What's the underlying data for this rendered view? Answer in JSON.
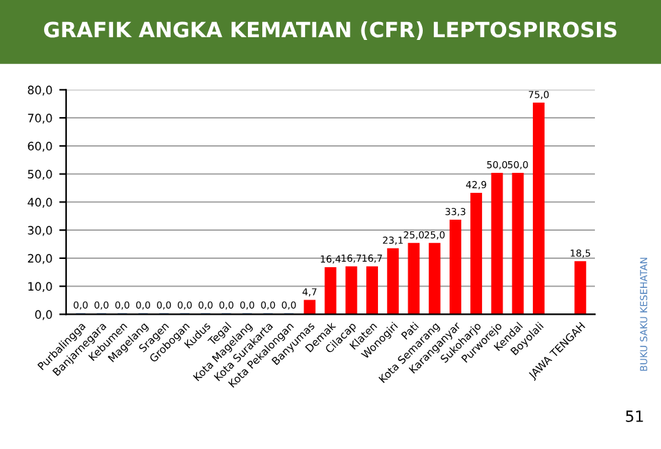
{
  "chart_data": {
    "type": "bar",
    "title": "GRAFIK ANGKA KEMATIAN (CFR) LEPTOSPIROSIS",
    "categories": [
      "Purbalingga",
      "Banjarnegara",
      "Kebumen",
      "Magelang",
      "Sragen",
      "Grobogan",
      "Kudus",
      "Tegal",
      "Kota Magelang",
      "Kota Surakarta",
      "Kota Pekalongan",
      "Banyumas",
      "Demak",
      "Cilacap",
      "Klaten",
      "Wonogiri",
      "Pati",
      "Kota Semarang",
      "Karanganyar",
      "Sukoharjo",
      "Purworejo",
      "Kendal",
      "Boyolali",
      null,
      "JAWA TENGAH"
    ],
    "values": [
      0,
      0,
      0,
      0,
      0,
      0,
      0,
      0,
      0,
      0,
      0,
      4.7,
      16.4,
      16.7,
      16.7,
      23.1,
      25.0,
      25.0,
      33.3,
      42.9,
      50.0,
      50.0,
      75.0,
      null,
      18.5
    ],
    "colors": [
      "#4f81bd",
      "#4f81bd",
      "#4f81bd",
      "#4f81bd",
      "#4f81bd",
      "#4f81bd",
      "#4f81bd",
      "#4f81bd",
      "#4f81bd",
      "#4f81bd",
      "#4f81bd",
      "#ff0000",
      "#ff0000",
      "#ff0000",
      "#ff0000",
      "#ff0000",
      "#ff0000",
      "#ff0000",
      "#ff0000",
      "#ff0000",
      "#ff0000",
      "#ff0000",
      "#ff0000",
      "#ff0000",
      "#ff0000"
    ],
    "value_labels": [
      "0,0",
      "0,0",
      "0,0",
      "0,0",
      "0,0",
      "0,0",
      "0,0",
      "0,0",
      "0,0",
      "0,0",
      "0,0",
      "4,7",
      "16,4",
      "16,7",
      "16,7",
      "23,1",
      "25,0",
      "25,0",
      "33,3",
      "42,9",
      "50,0",
      "50,0",
      "75,0",
      null,
      "18,5"
    ],
    "ylim": [
      0,
      80
    ],
    "yticks": [
      {
        "value": 0,
        "label": "0,0"
      },
      {
        "value": 10,
        "label": "10,0"
      },
      {
        "value": 20,
        "label": "20,0"
      },
      {
        "value": 30,
        "label": "30,0"
      },
      {
        "value": 40,
        "label": "40,0"
      },
      {
        "value": 50,
        "label": "50,0"
      },
      {
        "value": 60,
        "label": "60,0"
      },
      {
        "value": 70,
        "label": "70,0"
      },
      {
        "value": 80,
        "label": "80,0"
      }
    ],
    "grid": "y",
    "legend": false,
    "annotations": [
      "BUKU SAKU KESEHATAN",
      "51"
    ]
  }
}
